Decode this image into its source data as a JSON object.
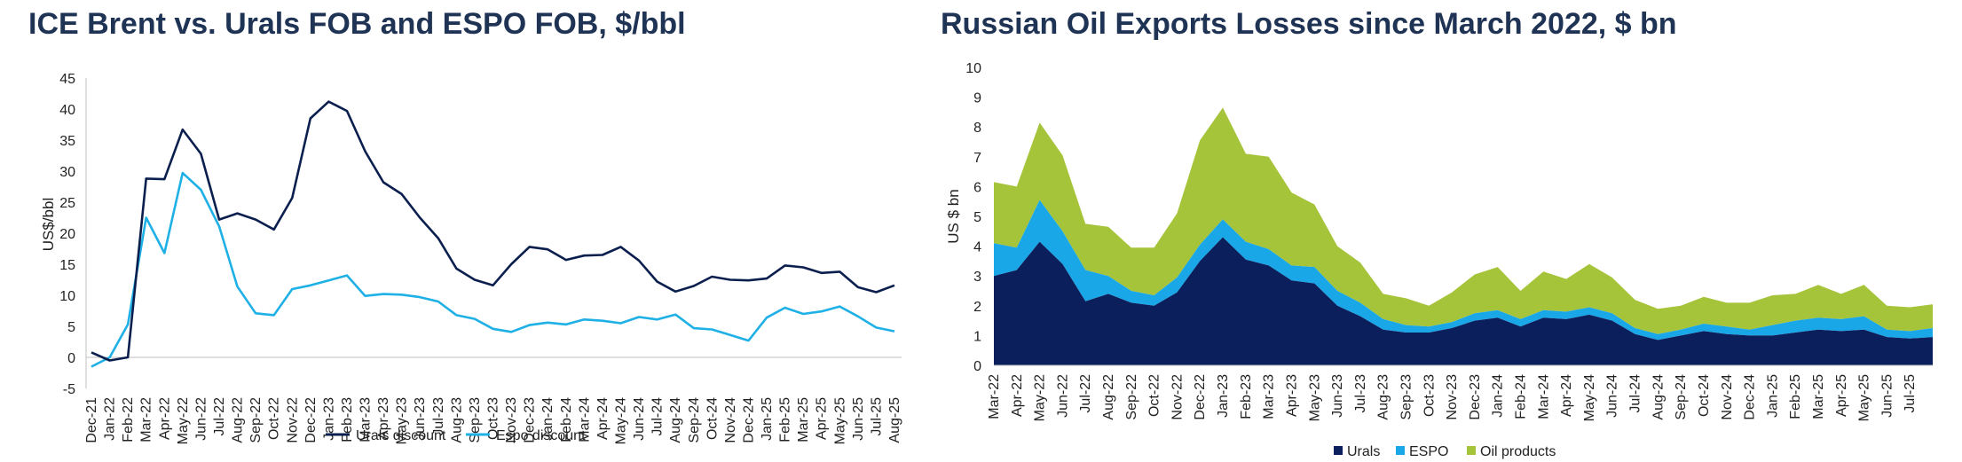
{
  "left_title": "ICE Brent vs. Urals FOB and ESPO FOB, $/bbl",
  "right_title": "Russian Oil Exports Losses since March 2022, $ bn",
  "chart_data": [
    {
      "type": "line",
      "title": "ICE Brent vs. Urals FOB and ESPO FOB, $/bbl",
      "xlabel": "",
      "ylabel": "US$/bbl",
      "ylim": [
        -5,
        45
      ],
      "yticks": [
        -5,
        0,
        5,
        10,
        15,
        20,
        25,
        30,
        35,
        40,
        45
      ],
      "grid": false,
      "legend": "bottom",
      "x": [
        "Dec-21",
        "Jan-22",
        "Feb-22",
        "Mar-22",
        "Apr-22",
        "May-22",
        "Jun-22",
        "Jul-22",
        "Aug-22",
        "Sep-22",
        "Oct-22",
        "Nov-22",
        "Dec-22",
        "Jan-23",
        "Feb-23",
        "Mar-23",
        "Apr-23",
        "May-23",
        "Jun-23",
        "Jul-23",
        "Aug-23",
        "Sep-23",
        "Oct-23",
        "Nov-23",
        "Dec-23",
        "Jan-24",
        "Feb-24",
        "Mar-24",
        "Apr-24",
        "May-24",
        "Jun-24",
        "Jul-24",
        "Aug-24",
        "Sep-24",
        "Oct-24",
        "Nov-24",
        "Dec-24",
        "Jan-25",
        "Feb-25",
        "Mar-25",
        "Apr-25",
        "May-25",
        "Jun-25",
        "Jul-25",
        "Aug-25"
      ],
      "series": [
        {
          "name": "Urals discount",
          "color": "#0b1f4f",
          "values": [
            0.8,
            -0.5,
            0,
            28.8,
            28.7,
            36.7,
            32.8,
            22.2,
            23.2,
            22.2,
            20.6,
            25.7,
            38.5,
            41.2,
            39.7,
            33.2,
            28.2,
            26.3,
            22.5,
            19.2,
            14.3,
            12.5,
            11.6,
            15,
            17.8,
            17.4,
            15.7,
            16.4,
            16.5,
            17.8,
            15.6,
            12.2,
            10.6,
            11.5,
            13,
            12.5,
            12.4,
            12.7,
            14.8,
            14.5,
            13.6,
            13.8,
            11.3,
            10.5,
            11.6
          ]
        },
        {
          "name": "Espo discount",
          "color": "#1fb0e6",
          "values": [
            -1.5,
            0,
            5.3,
            22.5,
            16.8,
            29.7,
            27,
            21.1,
            11.4,
            7.1,
            6.8,
            11,
            11.6,
            12.4,
            13.2,
            9.9,
            10.2,
            10.1,
            9.7,
            9,
            6.8,
            6.2,
            4.6,
            4.1,
            5.2,
            5.6,
            5.3,
            6.1,
            5.9,
            5.5,
            6.5,
            6.1,
            6.9,
            4.7,
            4.5,
            3.6,
            2.7,
            6.4,
            8,
            7,
            7.4,
            8.2,
            6.6,
            4.8,
            4.2
          ]
        }
      ]
    },
    {
      "type": "area",
      "title": "Russian Oil Exports Losses since March 2022, $ bn",
      "xlabel": "",
      "ylabel": "US $ bn",
      "ylim": [
        0,
        10
      ],
      "yticks": [
        0,
        1,
        2,
        3,
        4,
        5,
        6,
        7,
        8,
        9,
        10
      ],
      "grid": false,
      "stacked": true,
      "legend": "bottom",
      "x": [
        "Mar-22",
        "Apr-22",
        "May-22",
        "Jun-22",
        "Jul-22",
        "Aug-22",
        "Sep-22",
        "Oct-22",
        "Nov-22",
        "Dec-22",
        "Jan-23",
        "Feb-23",
        "Mar-23",
        "Apr-23",
        "May-23",
        "Jun-23",
        "Jul-23",
        "Aug-23",
        "Sep-23",
        "Oct-23",
        "Nov-23",
        "Dec-23",
        "Jan-24",
        "Feb-24",
        "Mar-24",
        "Apr-24",
        "May-24",
        "Jun-24",
        "Jul-24",
        "Aug-24",
        "Sep-24",
        "Oct-24",
        "Nov-24",
        "Dec-24",
        "Jan-25",
        "Feb-25",
        "Mar-25",
        "Apr-25",
        "May-25",
        "Jun-25",
        "Jul-25",
        "Aug-25"
      ],
      "x_tick_labels": [
        "Mar-22",
        "Apr-22",
        "May-22",
        "Jun-22",
        "Jul-22",
        "Aug-22",
        "Sep-22",
        "Oct-22",
        "Nov-22",
        "Dec-22",
        "Jan-23",
        "Feb-23",
        "Mar-23",
        "Apr-23",
        "May-23",
        "Jun-23",
        "Jul-23",
        "Aug-23",
        "Sep-23",
        "Oct-23",
        "Nov-23",
        "Dec-23",
        "Jan-24",
        "Feb-24",
        "Mar-24",
        "Apr-24",
        "May-24",
        "Jun-24",
        "Jul-24",
        "Aug-24",
        "Sep-24",
        "Oct-24",
        "Nov-24",
        "Dec-24",
        "Jan-25",
        "Feb-25",
        "Mar-25",
        "Apr-25",
        "May-25",
        "Jun-25",
        "Jul-25"
      ],
      "series": [
        {
          "name": "Urals",
          "color": "#0b1f5c",
          "values": [
            3,
            3.2,
            4.15,
            3.4,
            2.15,
            2.4,
            2.1,
            2,
            2.45,
            3.5,
            4.3,
            3.55,
            3.35,
            2.85,
            2.75,
            2,
            1.65,
            1.2,
            1.1,
            1.1,
            1.25,
            1.5,
            1.6,
            1.3,
            1.6,
            1.55,
            1.7,
            1.5,
            1.05,
            0.85,
            1,
            1.15,
            1.05,
            1,
            1,
            1.1,
            1.2,
            1.15,
            1.2,
            0.95,
            0.9,
            0.95
          ]
        },
        {
          "name": "ESPO",
          "color": "#1aa7e8",
          "values": [
            1.1,
            0.75,
            1.4,
            1.1,
            1.05,
            0.6,
            0.4,
            0.35,
            0.5,
            0.55,
            0.6,
            0.6,
            0.55,
            0.5,
            0.55,
            0.5,
            0.45,
            0.35,
            0.25,
            0.2,
            0.2,
            0.25,
            0.25,
            0.25,
            0.25,
            0.25,
            0.25,
            0.25,
            0.2,
            0.2,
            0.2,
            0.25,
            0.25,
            0.2,
            0.35,
            0.4,
            0.4,
            0.4,
            0.45,
            0.25,
            0.25,
            0.3
          ]
        },
        {
          "name": "Oil products",
          "color": "#a6c43a",
          "values": [
            2.05,
            2.05,
            2.6,
            2.55,
            1.55,
            1.65,
            1.45,
            1.6,
            2.15,
            3.5,
            3.75,
            2.95,
            3.1,
            2.45,
            2.1,
            1.5,
            1.35,
            0.85,
            0.9,
            0.7,
            1,
            1.3,
            1.45,
            0.95,
            1.3,
            1.1,
            1.45,
            1.2,
            0.95,
            0.85,
            0.8,
            0.9,
            0.8,
            0.9,
            1,
            0.9,
            1.1,
            0.85,
            1.05,
            0.8,
            0.8,
            0.8
          ]
        }
      ]
    }
  ]
}
